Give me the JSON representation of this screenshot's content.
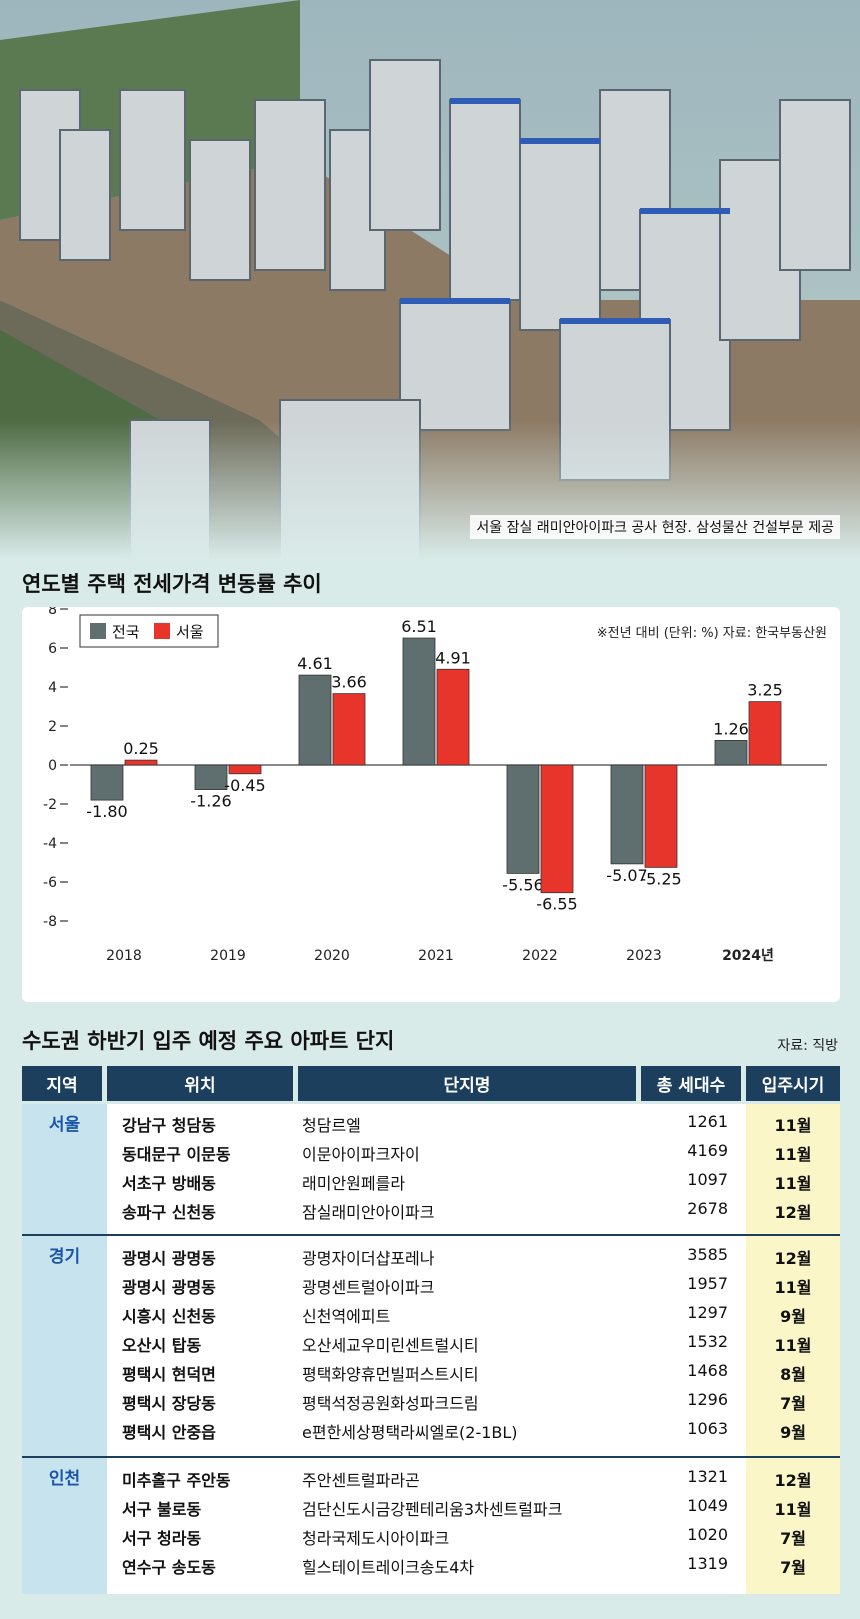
{
  "photo": {
    "caption": "서울 잠실 래미안아이파크 공사 현장.  삼성물산 건설부문 제공"
  },
  "chart_title": "연도별 주택 전세가격 변동률 추이",
  "chart_data": {
    "type": "bar",
    "categories": [
      "2018",
      "2019",
      "2020",
      "2021",
      "2022",
      "2023",
      "2024년"
    ],
    "series": [
      {
        "name": "전국",
        "values": [
          -1.8,
          -1.26,
          4.61,
          6.51,
          -5.56,
          -5.07,
          1.26
        ],
        "labels": [
          "-1.80",
          "-1.26",
          "4.61",
          "6.51",
          "-5.56",
          "-5.07",
          "1.26"
        ]
      },
      {
        "name": "서울",
        "values": [
          0.25,
          -0.45,
          3.66,
          4.91,
          -6.55,
          -5.25,
          3.25
        ],
        "labels": [
          "0.25",
          "-0.45",
          "3.66",
          "4.91",
          "-6.55",
          "-5.25",
          "3.25"
        ]
      }
    ],
    "ylim": [
      -8,
      8
    ],
    "yticks": [
      "8",
      "6",
      "4",
      "2",
      "0",
      "-2",
      "-4",
      "-6",
      "-8"
    ],
    "note": "※전년 대비 (단위: %) 자료: 한국부동산원",
    "legend_position": "top-left",
    "colors": {
      "전국": "#5f6f6f",
      "서울": "#e8352b"
    }
  },
  "table": {
    "title": "수도권 하반기 입주 예정 주요 아파트 단지",
    "source": "자료: 직방",
    "headers": [
      "지역",
      "위치",
      "단지명",
      "총 세대수",
      "입주시기"
    ],
    "groups": [
      {
        "region": "서울",
        "rows": [
          {
            "loc": "강남구 청담동",
            "name": "청담르엘",
            "units": "1261",
            "month": "11월"
          },
          {
            "loc": "동대문구 이문동",
            "name": "이문아이파크자이",
            "units": "4169",
            "month": "11월"
          },
          {
            "loc": "서초구 방배동",
            "name": "래미안원페를라",
            "units": "1097",
            "month": "11월"
          },
          {
            "loc": "송파구 신천동",
            "name": "잠실래미안아이파크",
            "units": "2678",
            "month": "12월"
          }
        ]
      },
      {
        "region": "경기",
        "rows": [
          {
            "loc": "광명시 광명동",
            "name": "광명자이더샵포레나",
            "units": "3585",
            "month": "12월"
          },
          {
            "loc": "광명시 광명동",
            "name": "광명센트럴아이파크",
            "units": "1957",
            "month": "11월"
          },
          {
            "loc": "시흥시 신천동",
            "name": "신천역에피트",
            "units": "1297",
            "month": "9월"
          },
          {
            "loc": "오산시 탑동",
            "name": "오산세교우미린센트럴시티",
            "units": "1532",
            "month": "11월"
          },
          {
            "loc": "평택시 현덕면",
            "name": "평택화양휴먼빌퍼스트시티",
            "units": "1468",
            "month": "8월"
          },
          {
            "loc": "평택시 장당동",
            "name": "평택석정공원화성파크드림",
            "units": "1296",
            "month": "7월"
          },
          {
            "loc": "평택시 안중읍",
            "name": "e편한세상평택라씨엘로(2-1BL)",
            "units": "1063",
            "month": "9월"
          }
        ]
      },
      {
        "region": "인천",
        "rows": [
          {
            "loc": "미추홀구 주안동",
            "name": "주안센트럴파라곤",
            "units": "1321",
            "month": "12월"
          },
          {
            "loc": "서구 불로동",
            "name": "검단신도시금강펜테리움3차센트럴파크",
            "units": "1049",
            "month": "11월"
          },
          {
            "loc": "서구 청라동",
            "name": "청라국제도시아이파크",
            "units": "1020",
            "month": "7월"
          },
          {
            "loc": "연수구 송도동",
            "name": "힐스테이트레이크송도4차",
            "units": "1319",
            "month": "7월"
          }
        ]
      }
    ]
  }
}
